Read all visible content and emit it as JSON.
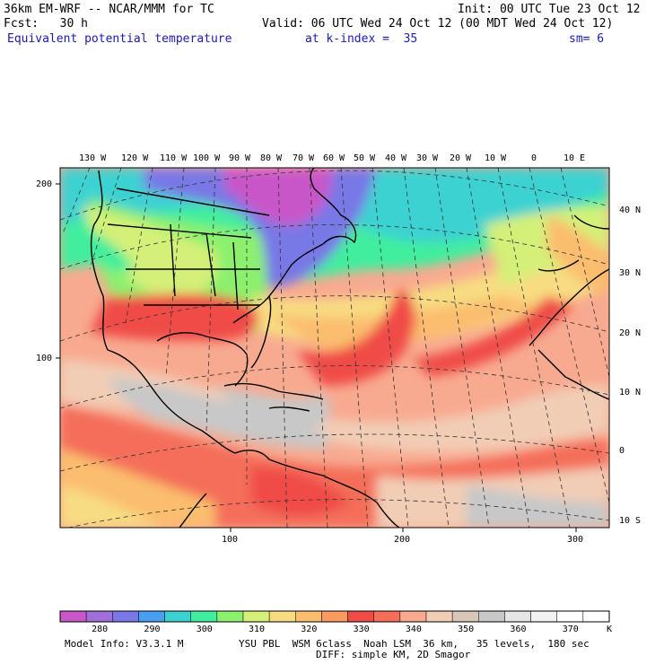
{
  "header": {
    "model": "36km EM-WRF -- NCAR/MMM for TC",
    "init": "Init: 00 UTC Tue 23 Oct 12",
    "fcst": "Fcst:   30 h",
    "valid": "Valid: 06 UTC Wed 24 Oct 12 (00 MDT Wed 24 Oct 12)",
    "field": "Equivalent potential temperature",
    "level": "at k-index =  35",
    "smooth": "sm= 6"
  },
  "map": {
    "lon_labels": [
      "130 W",
      "120 W",
      "110 W",
      "100 W",
      "90 W",
      "80 W",
      "70 W",
      "60 W",
      "50 W",
      "40 W",
      "30 W",
      "20 W",
      "10 W",
      "0",
      "10 E"
    ],
    "lat_labels": [
      "40 N",
      "30 N",
      "20 N",
      "10 N",
      "0",
      "10 S"
    ],
    "grid_y_labels": [
      "200",
      "100"
    ],
    "grid_x_labels": [
      "100",
      "200",
      "300"
    ]
  },
  "colorbar": {
    "colors": [
      "#c957c9",
      "#a070d8",
      "#7878e6",
      "#4a9ef0",
      "#3cd2d2",
      "#40ee9e",
      "#8cf06e",
      "#d4f078",
      "#f8dc82",
      "#fbbd6e",
      "#f89a62",
      "#f04c46",
      "#f46e5a",
      "#f8aa90",
      "#f2cdb6",
      "#d8c6b6",
      "#c8c8c8",
      "#e6e6e6",
      "#f2f2f2",
      "#ffffff",
      "#ffffff"
    ],
    "tick_labels": [
      "280",
      "290",
      "300",
      "310",
      "320",
      "330",
      "340",
      "350",
      "360",
      "370"
    ],
    "units": "K"
  },
  "footer": {
    "model_info": "Model Info: V3.3.1 M",
    "physics": "YSU PBL  WSM 6class  Noah LSM  36 km,   35 levels,  180 sec",
    "diffusion": "DIFF: simple KM, 2D Smagor"
  }
}
